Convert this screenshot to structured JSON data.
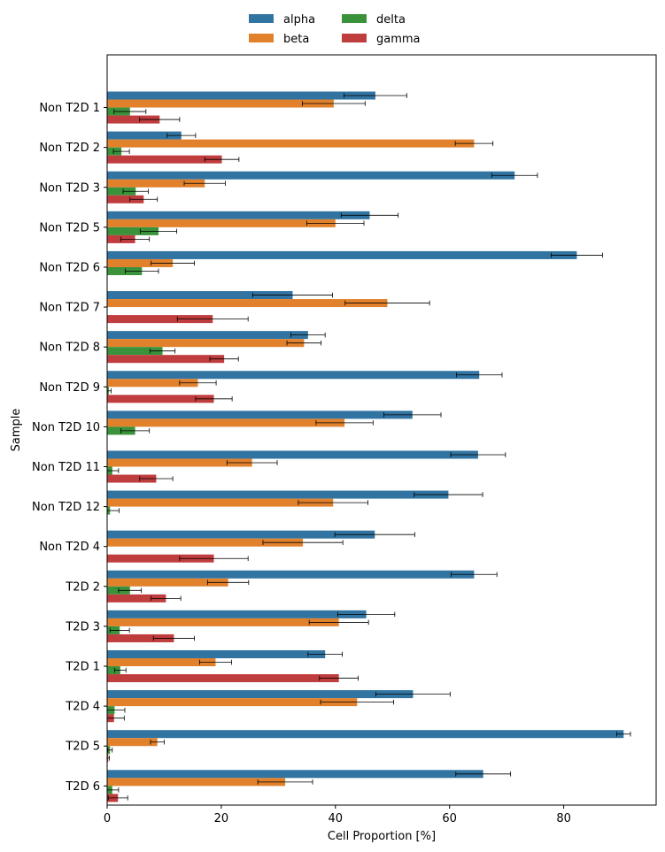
{
  "chart_data": {
    "type": "bar",
    "orientation": "horizontal",
    "title": "",
    "xlabel": "Cell Proportion [%]",
    "ylabel": "Sample",
    "xlim": [
      0,
      96.2
    ],
    "xticks": [
      0,
      20,
      40,
      60,
      80
    ],
    "grid": false,
    "legend_position": "top-center",
    "categories": [
      "Non T2D 1",
      "Non T2D 2",
      "Non T2D 3",
      "Non T2D 5",
      "Non T2D 6",
      "Non T2D 7",
      "Non T2D 8",
      "Non T2D 9",
      "Non T2D 10",
      "Non T2D 11",
      "Non T2D 12",
      "Non T2D 4",
      "T2D 2",
      "T2D 3",
      "T2D 1",
      "T2D 4",
      "T2D 5",
      "T2D 6"
    ],
    "series": [
      {
        "name": "alpha",
        "color": "#3274a1",
        "values": [
          47.0,
          13.0,
          71.4,
          46.0,
          82.3,
          32.5,
          35.2,
          65.2,
          53.5,
          65.0,
          59.8,
          46.9,
          64.3,
          45.4,
          38.2,
          53.6,
          90.5,
          65.9
        ],
        "errors": [
          5.5,
          2.5,
          4.0,
          5.0,
          4.5,
          7.0,
          3.0,
          4.0,
          5.0,
          4.8,
          6.0,
          7.0,
          4.0,
          5.0,
          3.0,
          6.5,
          1.2,
          4.8
        ]
      },
      {
        "name": "beta",
        "color": "#e1812c",
        "values": [
          39.7,
          64.3,
          17.1,
          40.0,
          11.5,
          49.1,
          34.5,
          15.9,
          41.6,
          25.4,
          39.6,
          34.3,
          21.2,
          40.6,
          19.0,
          43.8,
          8.8,
          31.2
        ],
        "errors": [
          5.5,
          3.3,
          3.6,
          5.0,
          3.8,
          7.4,
          3.0,
          3.2,
          5.0,
          4.4,
          6.1,
          7.0,
          3.6,
          5.2,
          2.8,
          6.4,
          1.2,
          4.8
        ]
      },
      {
        "name": "delta",
        "color": "#3a923a",
        "values": [
          4.0,
          2.5,
          5.0,
          9.0,
          6.1,
          0.0,
          9.7,
          0.3,
          4.9,
          0.9,
          0.5,
          0.0,
          4.0,
          2.2,
          2.3,
          1.3,
          0.5,
          0.9
        ],
        "errors": [
          2.8,
          1.4,
          2.2,
          3.2,
          2.9,
          0.0,
          2.2,
          0.4,
          2.5,
          1.1,
          1.6,
          0.0,
          2.0,
          1.7,
          1.0,
          1.8,
          0.4,
          1.1
        ]
      },
      {
        "name": "gamma",
        "color": "#c03d3e",
        "values": [
          9.2,
          20.1,
          6.4,
          4.9,
          0.0,
          18.5,
          20.5,
          18.7,
          0.0,
          8.6,
          0.0,
          18.7,
          10.3,
          11.7,
          40.6,
          1.2,
          0.2,
          1.9
        ],
        "errors": [
          3.5,
          3.0,
          2.4,
          2.5,
          0.0,
          6.2,
          2.5,
          3.2,
          0.0,
          2.9,
          0.0,
          6.0,
          2.6,
          3.6,
          3.4,
          1.8,
          0.2,
          1.7
        ]
      }
    ]
  }
}
